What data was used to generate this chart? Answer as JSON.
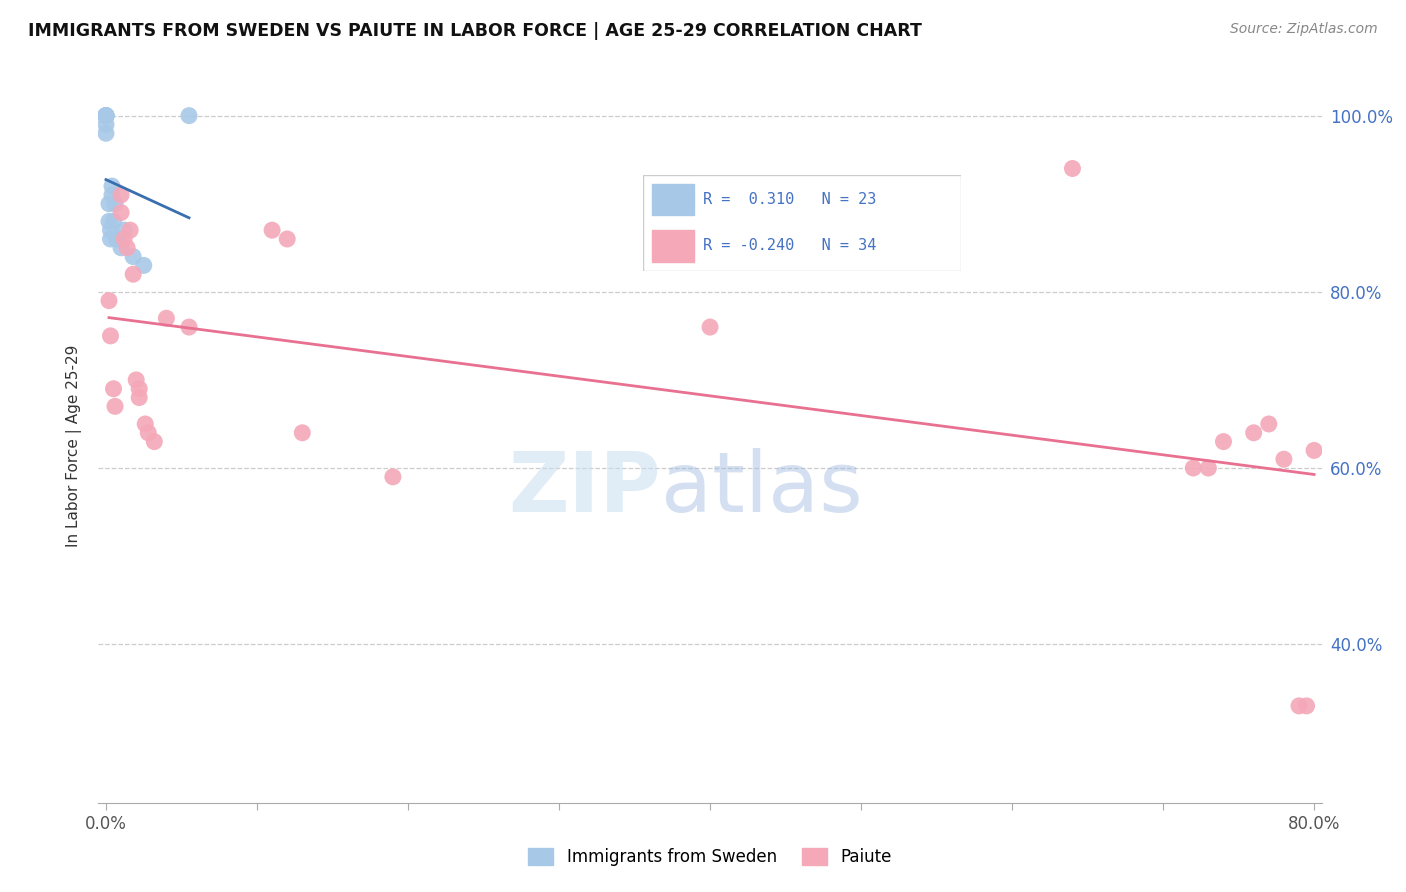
{
  "title": "IMMIGRANTS FROM SWEDEN VS PAIUTE IN LABOR FORCE | AGE 25-29 CORRELATION CHART",
  "source": "Source: ZipAtlas.com",
  "ylabel": "In Labor Force | Age 25-29",
  "xlim": [
    -0.005,
    0.805
  ],
  "ylim": [
    0.22,
    1.03
  ],
  "ytick_positions_right": [
    1.0,
    0.8,
    0.6,
    0.4
  ],
  "ytick_labels_right": [
    "100.0%",
    "80.0%",
    "60.0%",
    "40.0%"
  ],
  "xtick_positions": [
    0.0,
    0.1,
    0.2,
    0.3,
    0.4,
    0.5,
    0.6,
    0.7,
    0.8
  ],
  "legend_label1": "Immigrants from Sweden",
  "legend_label2": "Paiute",
  "R_sweden": 0.31,
  "N_sweden": 23,
  "R_paiute": -0.24,
  "N_paiute": 34,
  "blue_color": "#a8c8e8",
  "pink_color": "#f4a8b8",
  "blue_line_color": "#3a6faf",
  "pink_line_color": "#e87090",
  "sweden_x": [
    0.0,
    0.0,
    0.0,
    0.0,
    0.0,
    0.0,
    0.0,
    0.0,
    0.002,
    0.002,
    0.003,
    0.003,
    0.004,
    0.004,
    0.005,
    0.006,
    0.007,
    0.008,
    0.01,
    0.012,
    0.018,
    0.025,
    0.055
  ],
  "sweden_y": [
    1.0,
    1.0,
    1.0,
    1.0,
    1.0,
    1.0,
    0.99,
    0.98,
    0.9,
    0.88,
    0.87,
    0.86,
    0.92,
    0.91,
    0.88,
    0.9,
    0.86,
    0.86,
    0.85,
    0.87,
    0.84,
    0.83,
    1.0
  ],
  "paiute_x": [
    0.002,
    0.003,
    0.005,
    0.006,
    0.01,
    0.01,
    0.012,
    0.014,
    0.016,
    0.018,
    0.02,
    0.022,
    0.022,
    0.026,
    0.028,
    0.032,
    0.04,
    0.055,
    0.11,
    0.12,
    0.13,
    0.19,
    0.4,
    0.55,
    0.64,
    0.72,
    0.73,
    0.74,
    0.76,
    0.77,
    0.78,
    0.79,
    0.795,
    0.8
  ],
  "paiute_y": [
    0.79,
    0.75,
    0.69,
    0.67,
    0.91,
    0.89,
    0.86,
    0.85,
    0.87,
    0.82,
    0.7,
    0.69,
    0.68,
    0.65,
    0.64,
    0.63,
    0.77,
    0.76,
    0.87,
    0.86,
    0.64,
    0.59,
    0.76,
    0.84,
    0.94,
    0.6,
    0.6,
    0.63,
    0.64,
    0.65,
    0.61,
    0.33,
    0.33,
    0.62
  ]
}
